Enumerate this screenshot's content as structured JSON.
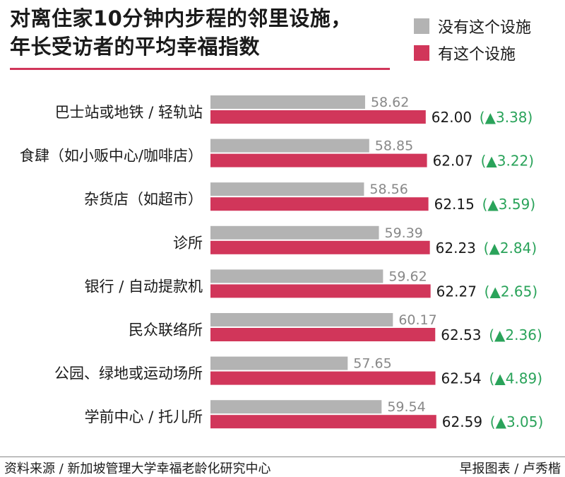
{
  "title_line1": "对离住家10分钟内步程的邻里设施，",
  "title_line2": "年长受访者的平均幸福指数",
  "colors": {
    "without": "#b3b3b3",
    "with": "#d1365a",
    "delta": "#2aa35a",
    "rule": "#d1365a"
  },
  "footer": {
    "source": "资料来源 / 新加坡管理大学幸福老龄化研究中心",
    "credit": "早报图表 / 卢秀楷"
  },
  "chart_data": {
    "type": "bar",
    "orientation": "horizontal",
    "categories": [
      "巴士站或地铁 / 轻轨站",
      "食肆（如小贩中心/咖啡店）",
      "杂货店（如超市）",
      "诊所",
      "银行 / 自动提款机",
      "民众联络所",
      "公园、绿地或运动场所",
      "学前中心 / 托儿所"
    ],
    "series": [
      {
        "name": "没有这个设施",
        "values": [
          58.62,
          58.85,
          58.56,
          59.39,
          59.62,
          60.17,
          57.65,
          59.54
        ],
        "labels": [
          "58.62",
          "58.85",
          "58.56",
          "59.39",
          "59.62",
          "60.17",
          "57.65",
          "59.54"
        ]
      },
      {
        "name": "有这个设施",
        "values": [
          62.0,
          62.07,
          62.15,
          62.23,
          62.27,
          62.53,
          62.54,
          62.59
        ],
        "labels": [
          "62.00",
          "62.07",
          "62.15",
          "62.23",
          "62.27",
          "62.53",
          "62.54",
          "62.59"
        ]
      }
    ],
    "deltas": [
      "(▲3.38)",
      "(▲3.22)",
      "(▲3.59)",
      "(▲2.84)",
      "(▲2.65)",
      "(▲2.36)",
      "(▲4.89)",
      "(▲3.05)"
    ],
    "xlim": [
      50,
      65
    ]
  }
}
